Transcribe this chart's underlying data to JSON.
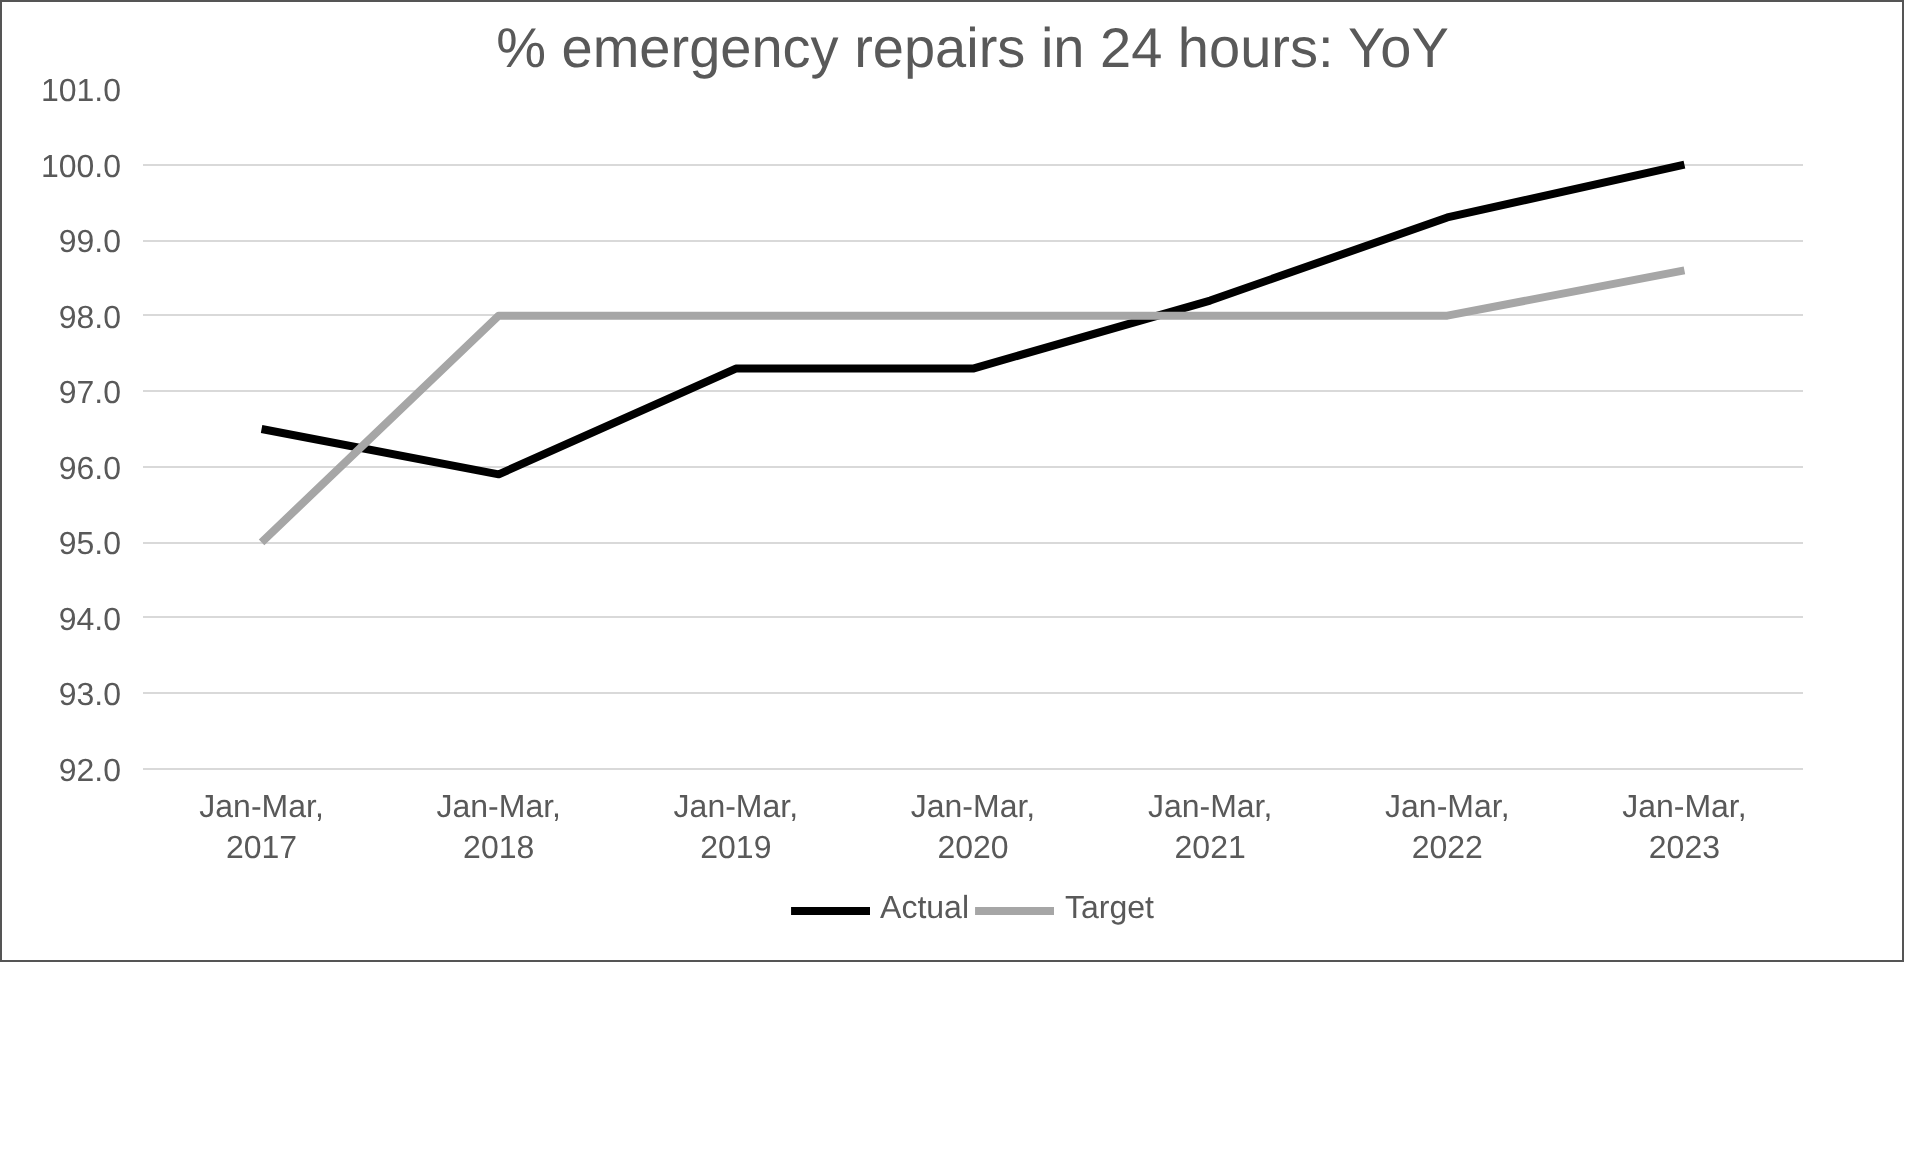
{
  "chart_data": {
    "type": "line",
    "title": "% emergency repairs in 24 hours: YoY",
    "categories": [
      "Jan-Mar, 2017",
      "Jan-Mar, 2018",
      "Jan-Mar, 2019",
      "Jan-Mar, 2020",
      "Jan-Mar, 2021",
      "Jan-Mar, 2022",
      "Jan-Mar, 2023"
    ],
    "series": [
      {
        "name": "Actual",
        "color": "#000000",
        "values": [
          96.5,
          95.9,
          97.3,
          97.3,
          98.2,
          99.3,
          100.0
        ]
      },
      {
        "name": "Target",
        "color": "#a6a6a6",
        "values": [
          95.0,
          98.0,
          98.0,
          98.0,
          98.0,
          98.0,
          98.6
        ]
      }
    ],
    "ylim": [
      92.0,
      101.0
    ],
    "yticks": [
      {
        "value": 92,
        "label": "92.0"
      },
      {
        "value": 93,
        "label": "93.0"
      },
      {
        "value": 94,
        "label": "94.0"
      },
      {
        "value": 95,
        "label": "95.0"
      },
      {
        "value": 96,
        "label": "96.0"
      },
      {
        "value": 97,
        "label": "97.0"
      },
      {
        "value": 98,
        "label": "98.0"
      },
      {
        "value": 99,
        "label": "99.0"
      },
      {
        "value": 100,
        "label": "100.0"
      },
      {
        "value": 101,
        "label": "101.0"
      }
    ],
    "grid": "y",
    "legend": "bottom",
    "line_style": "solid",
    "marker": "none"
  }
}
